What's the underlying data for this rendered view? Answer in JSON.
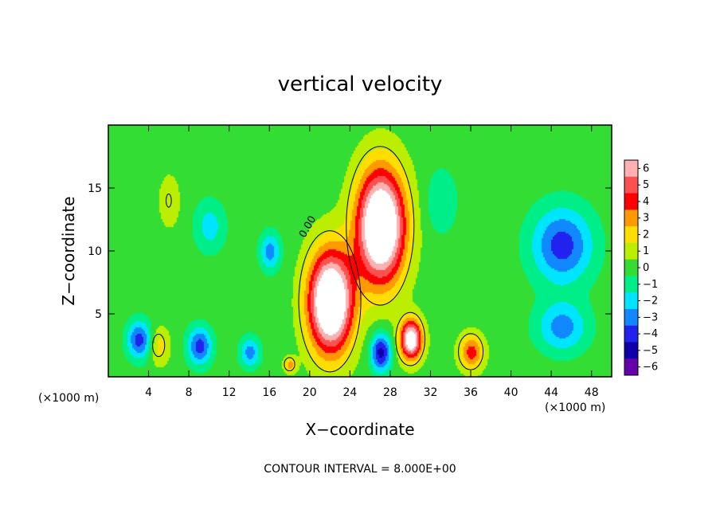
{
  "chart_data": {
    "type": "heatmap",
    "title": "vertical velocity",
    "xlabel": "X−coordinate",
    "ylabel": "Z−coordinate",
    "x_unit_left": "(×1000 m)",
    "x_unit_right": "(×1000 m)",
    "xlim": [
      0,
      50
    ],
    "ylim": [
      0,
      20
    ],
    "x_ticks": [
      4,
      8,
      12,
      16,
      20,
      24,
      28,
      32,
      36,
      40,
      44,
      48
    ],
    "x_tick_labels": [
      "4",
      "8",
      "12",
      "16",
      "20",
      "24",
      "28",
      "32",
      "36",
      "40",
      "44",
      "48"
    ],
    "y_ticks": [
      5,
      10,
      15
    ],
    "y_tick_labels": [
      "5",
      "10",
      "15"
    ],
    "colorbar": {
      "levels": [
        6,
        5,
        4,
        3,
        2,
        1,
        0,
        -1,
        -2,
        -3,
        -4,
        -5,
        -6
      ],
      "labels": [
        "6",
        "5",
        "4",
        "3",
        "2",
        "1",
        "0",
        "−1",
        "−2",
        "−3",
        "−4",
        "−5",
        "−6"
      ],
      "colors": [
        "#ffb0b0",
        "#ff5050",
        "#ff0000",
        "#ff9900",
        "#ffdd00",
        "#bbee00",
        "#33dd33",
        "#00ee88",
        "#00e5ff",
        "#1188ff",
        "#2222ee",
        "#1100aa",
        "#6600aa"
      ]
    },
    "contour_label": "0.00",
    "footnote": "CONTOUR INTERVAL = 8.000E+00",
    "features": [
      {
        "x": 22,
        "z": 6,
        "sx": 2.2,
        "sz": 4,
        "w": 10
      },
      {
        "x": 27,
        "z": 12,
        "sx": 2.4,
        "sz": 4.5,
        "w": 10
      },
      {
        "x": 30,
        "z": 3,
        "sx": 1.1,
        "sz": 1.6,
        "w": 8
      },
      {
        "x": 36,
        "z": 2,
        "sx": 1.2,
        "sz": 1.4,
        "w": 4
      },
      {
        "x": 18,
        "z": 1,
        "sx": 0.6,
        "sz": 0.6,
        "w": 3
      },
      {
        "x": 5,
        "z": 2.5,
        "sx": 1,
        "sz": 1.5,
        "w": 2
      },
      {
        "x": 6,
        "z": 14,
        "sx": 1,
        "sz": 2,
        "w": 1.5
      },
      {
        "x": 45,
        "z": 10.5,
        "sx": 3,
        "sz": 3,
        "w": -4
      },
      {
        "x": 27,
        "z": 2,
        "sx": 1,
        "sz": 1.5,
        "w": -5
      },
      {
        "x": 9,
        "z": 2.5,
        "sx": 1.2,
        "sz": 1.5,
        "w": -4
      },
      {
        "x": 3,
        "z": 3,
        "sx": 1.2,
        "sz": 1.5,
        "w": -4
      },
      {
        "x": 14,
        "z": 2,
        "sx": 1,
        "sz": 1.2,
        "w": -3
      },
      {
        "x": 16,
        "z": 10,
        "sx": 1,
        "sz": 1.5,
        "w": -3
      },
      {
        "x": 45,
        "z": 4,
        "sx": 2.5,
        "sz": 2,
        "w": -3
      },
      {
        "x": 10,
        "z": 12,
        "sx": 1.5,
        "sz": 2,
        "w": -2
      },
      {
        "x": 33,
        "z": 14,
        "sx": 1.5,
        "sz": 2.5,
        "w": -1.5
      }
    ]
  }
}
